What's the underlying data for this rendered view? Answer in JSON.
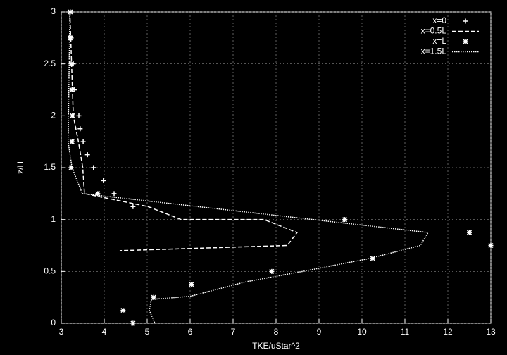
{
  "chart_data": {
    "type": "line",
    "xlabel": "TKE/uStar^2",
    "ylabel": "z/H",
    "xlim": [
      3,
      13
    ],
    "ylim": [
      0,
      3
    ],
    "xticks": [
      3,
      4,
      5,
      6,
      7,
      8,
      9,
      10,
      11,
      12,
      13
    ],
    "yticks": [
      0,
      0.5,
      1,
      1.5,
      2,
      2.5,
      3
    ],
    "grid": true,
    "legend": "top-right",
    "series": [
      {
        "name": "x=0",
        "color": "#ffffff",
        "marker": "plus",
        "x": [
          3.21,
          3.23,
          3.28,
          3.31,
          3.41,
          3.44,
          3.51,
          3.61,
          3.75,
          3.98,
          4.23,
          4.67
        ],
        "values": [
          3,
          2.75,
          2.5,
          2.25,
          2,
          1.875,
          1.75,
          1.625,
          1.5,
          1.375,
          1.25,
          1.125
        ]
      },
      {
        "name": "x=0.5L",
        "color": "#ffffff",
        "dash": "dashed",
        "x": [
          3.2,
          3.28,
          3.4,
          3.5,
          3.54,
          5.02,
          5.79,
          7.72,
          8.49,
          8.26,
          4.36
        ],
        "values": [
          3,
          2,
          1.75,
          1.5,
          1.25,
          1.125,
          1.0,
          1.0,
          0.875,
          0.75,
          0.7
        ]
      },
      {
        "name": "x=L",
        "color": "#ffffff",
        "marker": "star",
        "x": [
          3.21,
          3.21,
          3.23,
          3.25,
          3.26,
          3.25,
          3.23,
          3.85,
          9.6,
          12.5,
          13.0,
          10.25,
          7.9,
          6.03,
          5.15,
          4.44,
          4.67
        ],
        "values": [
          3,
          2.75,
          2.5,
          2.25,
          2,
          1.75,
          1.5,
          1.25,
          1.0,
          0.875,
          0.75,
          0.625,
          0.5,
          0.375,
          0.25,
          0.125,
          0
        ]
      },
      {
        "name": "x=1.5L",
        "color": "#ffffff",
        "dash": "dotted",
        "x": [
          3.2,
          3.16,
          3.25,
          3.49,
          11.54,
          11.36,
          10.18,
          8.62,
          7.3,
          6.0,
          5.1,
          5.05,
          5.18
        ],
        "values": [
          3,
          1.75,
          1.5,
          1.25,
          0.875,
          0.75,
          0.625,
          0.5,
          0.4,
          0.26,
          0.23,
          0.125,
          0
        ]
      }
    ]
  }
}
